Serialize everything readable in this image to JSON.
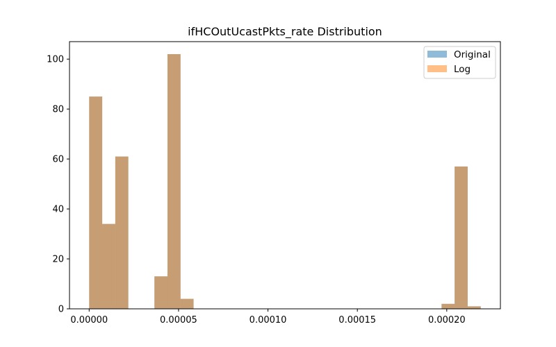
{
  "chart_data": {
    "type": "bar",
    "title": "ifHCOutUcastPkts_rate Distribution",
    "xlabel": "",
    "ylabel": "",
    "xlim": [
      -1.1e-05,
      0.00023
    ],
    "ylim": [
      0,
      107
    ],
    "xticks": [
      0.0,
      5e-05,
      0.0001,
      0.00015,
      0.0002
    ],
    "xtick_labels": [
      "0.00000",
      "0.00005",
      "0.00010",
      "0.00015",
      "0.00020"
    ],
    "yticks": [
      0,
      20,
      40,
      60,
      80,
      100
    ],
    "ytick_labels": [
      "0",
      "20",
      "40",
      "60",
      "80",
      "100"
    ],
    "grid": false,
    "legend_position": "top-right",
    "bin_edges": [
      0.0,
      7.3e-06,
      1.46e-05,
      2.19e-05,
      2.92e-05,
      3.65e-05,
      4.38e-05,
      5.11e-05,
      5.84e-05,
      6.57e-05,
      7.3e-05,
      8.03e-05,
      8.76e-05,
      9.49e-05,
      0.0001022,
      0.0001095,
      0.0001168,
      0.0001241,
      0.0001314,
      0.0001387,
      0.000146,
      0.0001533,
      0.0001606,
      0.0001679,
      0.0001752,
      0.0001825,
      0.0001898,
      0.0001971,
      0.0002044,
      0.0002117,
      0.000219
    ],
    "series": [
      {
        "name": "Original",
        "color": "#1f77b4",
        "alpha": 0.5,
        "values": [
          85,
          34,
          61,
          0,
          0,
          13,
          102,
          4,
          0,
          0,
          0,
          0,
          0,
          0,
          0,
          0,
          0,
          0,
          0,
          0,
          0,
          0,
          0,
          0,
          0,
          0,
          0,
          2,
          57,
          1
        ]
      },
      {
        "name": "Log",
        "color": "#ff7f0e",
        "alpha": 0.5,
        "values": [
          85,
          34,
          61,
          0,
          0,
          13,
          102,
          4,
          0,
          0,
          0,
          0,
          0,
          0,
          0,
          0,
          0,
          0,
          0,
          0,
          0,
          0,
          0,
          0,
          0,
          0,
          0,
          2,
          57,
          1
        ]
      }
    ]
  }
}
